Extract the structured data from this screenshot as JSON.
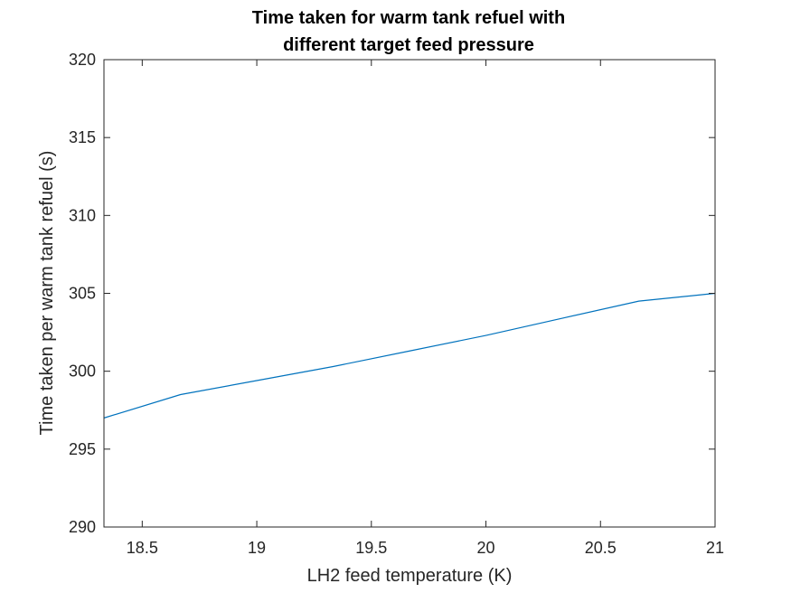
{
  "chart_data": {
    "type": "line",
    "title": [
      "Time taken for warm tank refuel with",
      "different target feed pressure"
    ],
    "xlabel": "LH2 feed temperature (K)",
    "ylabel": "Time taken per warm tank refuel (s)",
    "xlim": [
      18.333,
      21
    ],
    "ylim": [
      290,
      320
    ],
    "xticks": [
      18.5,
      19,
      19.5,
      20,
      20.5,
      21
    ],
    "xtick_labels": [
      "18.5",
      "19",
      "19.5",
      "20",
      "20.5",
      "21"
    ],
    "yticks": [
      290,
      295,
      300,
      305,
      310,
      315,
      320
    ],
    "ytick_labels": [
      "290",
      "295",
      "300",
      "305",
      "310",
      "315",
      "320"
    ],
    "grid": false,
    "series": [
      {
        "color": "#0072BD",
        "x": [
          18.333,
          18.667,
          19.0,
          19.333,
          19.667,
          20.0,
          20.333,
          20.667,
          21.0
        ],
        "y": [
          297.0,
          298.5,
          299.4,
          300.3,
          301.3,
          302.3,
          303.4,
          304.5,
          305.0
        ]
      }
    ]
  }
}
